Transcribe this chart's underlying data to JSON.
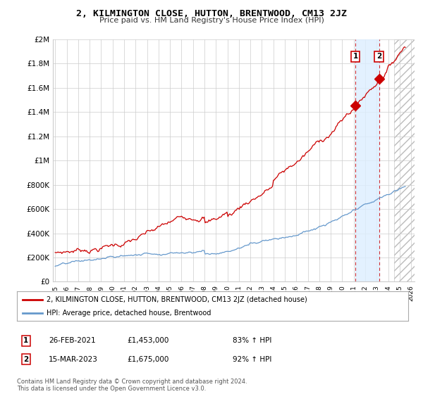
{
  "title": "2, KILMINGTON CLOSE, HUTTON, BRENTWOOD, CM13 2JZ",
  "subtitle": "Price paid vs. HM Land Registry's House Price Index (HPI)",
  "ylim": [
    0,
    2000000
  ],
  "yticks": [
    0,
    200000,
    400000,
    600000,
    800000,
    1000000,
    1200000,
    1400000,
    1600000,
    1800000,
    2000000
  ],
  "ytick_labels": [
    "£0",
    "£200K",
    "£400K",
    "£600K",
    "£800K",
    "£1M",
    "£1.2M",
    "£1.4M",
    "£1.6M",
    "£1.8M",
    "£2M"
  ],
  "x_start_year": 1995,
  "x_end_year": 2026,
  "red_color": "#cc0000",
  "blue_color": "#6699cc",
  "highlight_fill": "#ddeeff",
  "hatch_color": "#cccccc",
  "point1_x": 2021.15,
  "point1_y": 1453000,
  "point2_x": 2023.21,
  "point2_y": 1675000,
  "legend_line1": "2, KILMINGTON CLOSE, HUTTON, BRENTWOOD, CM13 2JZ (detached house)",
  "legend_line2": "HPI: Average price, detached house, Brentwood",
  "note1_date": "26-FEB-2021",
  "note1_price": "£1,453,000",
  "note1_hpi": "83% ↑ HPI",
  "note2_date": "15-MAR-2023",
  "note2_price": "£1,675,000",
  "note2_hpi": "92% ↑ HPI",
  "footer": "Contains HM Land Registry data © Crown copyright and database right 2024.\nThis data is licensed under the Open Government Licence v3.0.",
  "background_color": "#ffffff",
  "grid_color": "#cccccc",
  "hatch_start": 2024.5,
  "xlim_left": 1994.8,
  "xlim_right": 2026.3
}
